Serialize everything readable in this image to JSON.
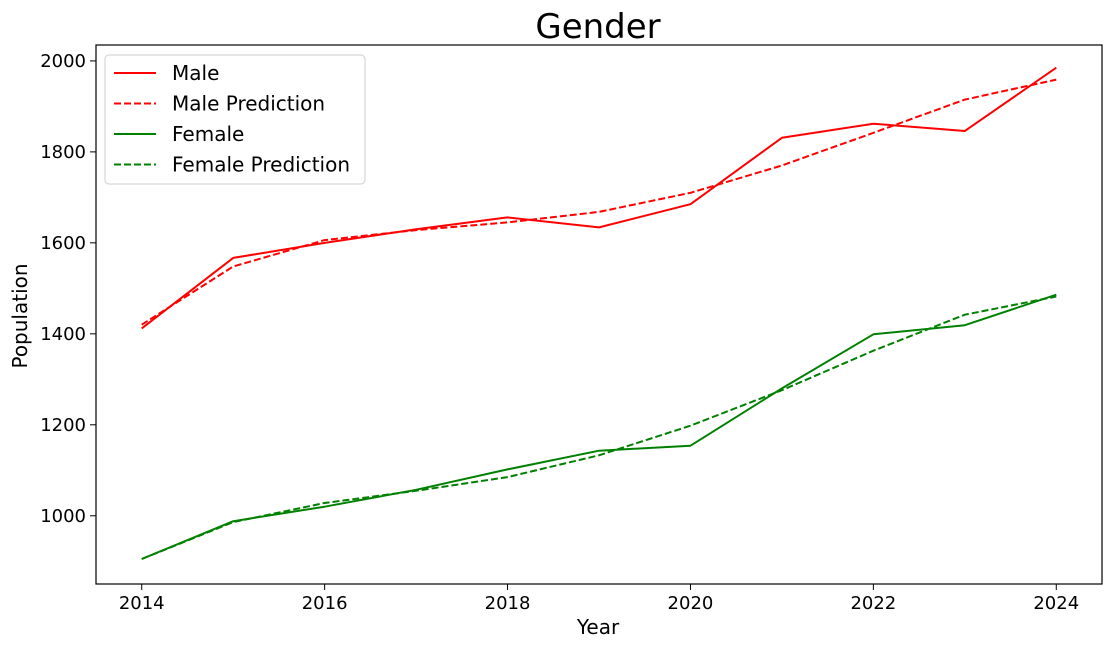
{
  "chart_data": {
    "type": "line",
    "title": "Gender",
    "xlabel": "Year",
    "ylabel": "Population",
    "xlim": [
      2013.5,
      2024.5
    ],
    "ylim": [
      850,
      2035
    ],
    "xticks": [
      2014,
      2016,
      2018,
      2020,
      2022,
      2024
    ],
    "yticks": [
      1000,
      1200,
      1400,
      1600,
      1800,
      2000
    ],
    "grid": false,
    "legend_position": "top-left",
    "x": [
      2014,
      2015,
      2016,
      2017,
      2018,
      2019,
      2020,
      2021,
      2022,
      2023,
      2024
    ],
    "series": [
      {
        "name": "Male",
        "color": "#ff0000",
        "style": "solid",
        "values": [
          1412,
          1567,
          1600,
          1630,
          1656,
          1634,
          1685,
          1831,
          1862,
          1846,
          1985
        ]
      },
      {
        "name": "Male Prediction",
        "color": "#ff0000",
        "style": "dashed",
        "values": [
          1420,
          1548,
          1606,
          1628,
          1645,
          1668,
          1710,
          1770,
          1842,
          1915,
          1959
        ]
      },
      {
        "name": "Female",
        "color": "#008000",
        "style": "solid",
        "values": [
          905,
          988,
          1020,
          1057,
          1102,
          1143,
          1154,
          1280,
          1399,
          1419,
          1486
        ]
      },
      {
        "name": "Female Prediction",
        "color": "#008000",
        "style": "dashed",
        "values": [
          905,
          986,
          1028,
          1055,
          1085,
          1133,
          1198,
          1276,
          1363,
          1442,
          1482
        ]
      }
    ]
  }
}
